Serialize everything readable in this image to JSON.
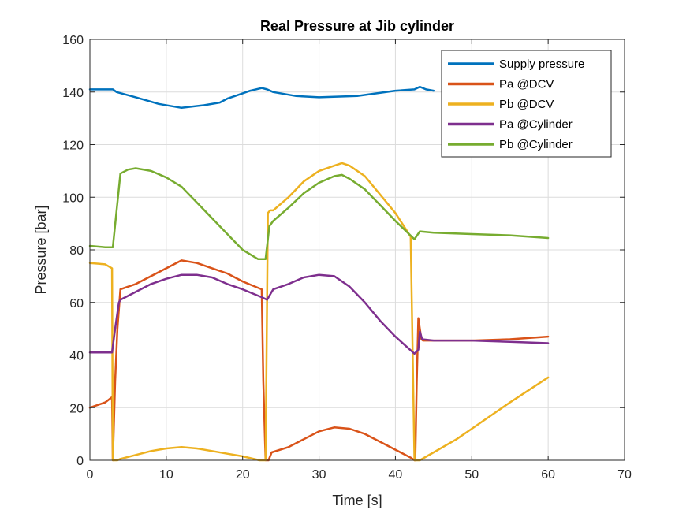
{
  "chart_data": {
    "type": "line",
    "title": "Real Pressure at Jib cylinder",
    "xlabel": "Time [s]",
    "ylabel": "Pressure [bar]",
    "xlim": [
      0,
      70
    ],
    "ylim": [
      0,
      160
    ],
    "xticks": [
      0,
      10,
      20,
      30,
      40,
      50,
      60,
      70
    ],
    "yticks": [
      0,
      20,
      40,
      60,
      80,
      100,
      120,
      140,
      160
    ],
    "xtick_labels": [
      "0",
      "10",
      "20",
      "30",
      "40",
      "50",
      "60",
      "70"
    ],
    "ytick_labels": [
      "0",
      "20",
      "40",
      "60",
      "80",
      "100",
      "120",
      "140",
      "160"
    ],
    "grid": true,
    "legend_position": "top-right",
    "series": [
      {
        "name": "Supply pressure",
        "color": "#0072BD",
        "x": [
          0,
          2,
          3,
          3.5,
          6,
          9,
          12,
          15,
          17,
          18,
          19,
          21,
          22.5,
          23.2,
          24,
          27,
          30,
          35,
          40,
          42.5,
          43.2,
          44,
          45
        ],
        "y": [
          141,
          141,
          141,
          140,
          138,
          135.5,
          134,
          135,
          136,
          137.5,
          138.5,
          140.5,
          141.5,
          141,
          140,
          138.5,
          138,
          138.5,
          140.5,
          141,
          142,
          141,
          140.5
        ]
      },
      {
        "name": "Pa @DCV",
        "color": "#D95319",
        "x": [
          0,
          2,
          2.9,
          3.0,
          3.3,
          3.6,
          4,
          6,
          8,
          10,
          12,
          14,
          16,
          18,
          20,
          22.5,
          22.7,
          23.0,
          23.2,
          23.4,
          23.8,
          26,
          28,
          30,
          32,
          34,
          36,
          38,
          40,
          42,
          42.5,
          42.6,
          42.8,
          43.0,
          43.2,
          43.4,
          43.6,
          45,
          50,
          55,
          60
        ],
        "y": [
          20,
          22,
          24,
          0,
          30,
          50,
          65,
          67,
          70,
          73,
          76,
          75,
          73,
          71,
          68,
          65,
          30,
          0,
          0,
          0,
          3,
          5,
          8,
          11,
          12.5,
          12,
          10,
          7,
          4,
          1,
          0,
          0,
          30,
          54,
          50,
          46,
          45.5,
          45.5,
          45.5,
          46,
          47
        ]
      },
      {
        "name": "Pb @DCV",
        "color": "#EDB120",
        "x": [
          0,
          2,
          2.9,
          3.0,
          3.2,
          3.6,
          4,
          6,
          8,
          10,
          12,
          14,
          16,
          18,
          20,
          22.2,
          22.5,
          23.0,
          23.3,
          23.6,
          24,
          26,
          28,
          30,
          32,
          33,
          34,
          36,
          38,
          40,
          42,
          42.5,
          42.8,
          43.2,
          45,
          48,
          50,
          55,
          60
        ],
        "y": [
          75,
          74.5,
          73,
          0,
          0,
          0,
          0.5,
          2,
          3.5,
          4.5,
          5,
          4.5,
          3.5,
          2.5,
          1.5,
          0,
          0,
          0,
          94,
          95,
          95,
          100,
          106,
          110,
          112,
          113,
          112,
          108,
          101,
          94,
          85,
          0,
          0,
          0,
          3,
          8,
          12,
          22,
          31.5
        ]
      },
      {
        "name": "Pa @Cylinder",
        "color": "#7E2F8E",
        "x": [
          0,
          2,
          2.9,
          3.3,
          3.8,
          4,
          6,
          8,
          10,
          12,
          14,
          16,
          18,
          20,
          22.5,
          23.2,
          23.8,
          24,
          26,
          28,
          30,
          32,
          34,
          36,
          38,
          40,
          42.5,
          43.0,
          43.2,
          43.5,
          45,
          50,
          55,
          60
        ],
        "y": [
          41,
          41,
          41,
          50,
          60,
          61,
          64,
          67,
          69,
          70.5,
          70.5,
          69.5,
          67,
          65,
          62,
          61,
          64,
          65,
          67,
          69.5,
          70.5,
          70,
          66,
          60,
          53,
          47,
          40.5,
          42,
          49,
          46,
          45.5,
          45.5,
          45,
          44.5
        ]
      },
      {
        "name": "Pb @Cylinder",
        "color": "#77AC30",
        "x": [
          0,
          2,
          3,
          3.5,
          4,
          5,
          6,
          8,
          10,
          12,
          14,
          16,
          18,
          20,
          22,
          23,
          23.5,
          24,
          26,
          28,
          30,
          32,
          33,
          34,
          36,
          38,
          40,
          42.5,
          43.2,
          45,
          50,
          55,
          60
        ],
        "y": [
          81.5,
          81,
          81,
          95,
          109,
          110.5,
          111,
          110,
          107.5,
          104,
          98,
          92,
          86,
          80,
          76.5,
          76.5,
          89,
          91,
          96,
          101.5,
          105.5,
          108,
          108.5,
          107,
          103,
          97,
          91,
          84,
          87,
          86.5,
          86,
          85.5,
          84.5
        ]
      }
    ]
  }
}
